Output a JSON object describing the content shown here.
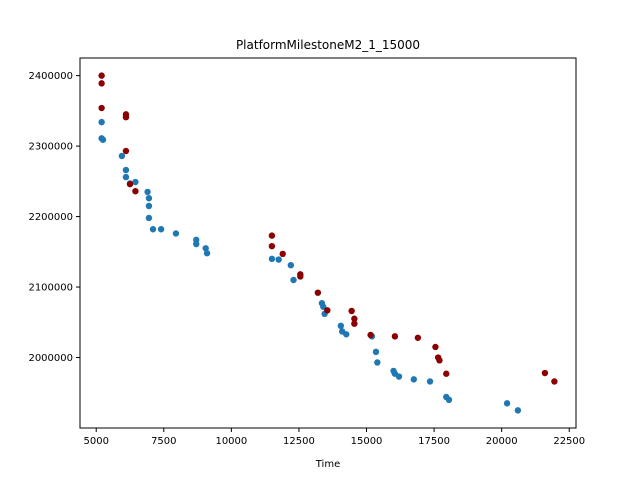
{
  "chart_data": {
    "type": "scatter",
    "title": "PlatformMilestoneM2_1_15000",
    "xlabel": "Time",
    "ylabel": "",
    "xlim": [
      4400,
      22750
    ],
    "ylim": [
      1900000,
      2425000
    ],
    "x_ticks": [
      5000,
      7500,
      10000,
      12500,
      15000,
      17500,
      20000,
      22500
    ],
    "y_ticks": [
      2000000,
      2100000,
      2200000,
      2300000,
      2400000
    ],
    "grid": false,
    "series": [
      {
        "name": "blue",
        "color": "#1f77b4",
        "points": [
          [
            5200,
            2334000
          ],
          [
            5200,
            2311000
          ],
          [
            5250,
            2309000
          ],
          [
            5950,
            2286000
          ],
          [
            6100,
            2266000
          ],
          [
            6100,
            2256000
          ],
          [
            6250,
            2247000
          ],
          [
            6450,
            2249000
          ],
          [
            6900,
            2235000
          ],
          [
            6950,
            2226000
          ],
          [
            6950,
            2215000
          ],
          [
            6950,
            2198000
          ],
          [
            7100,
            2182000
          ],
          [
            7400,
            2182000
          ],
          [
            7950,
            2176000
          ],
          [
            8700,
            2167000
          ],
          [
            8700,
            2161000
          ],
          [
            9050,
            2155000
          ],
          [
            9100,
            2148000
          ],
          [
            11500,
            2140000
          ],
          [
            11750,
            2139000
          ],
          [
            12200,
            2131000
          ],
          [
            12300,
            2110000
          ],
          [
            13350,
            2077000
          ],
          [
            13400,
            2072000
          ],
          [
            13450,
            2062000
          ],
          [
            14050,
            2045000
          ],
          [
            14100,
            2037000
          ],
          [
            14250,
            2033000
          ],
          [
            15200,
            2030000
          ],
          [
            15350,
            2008000
          ],
          [
            15400,
            1993000
          ],
          [
            16000,
            1981000
          ],
          [
            16050,
            1977000
          ],
          [
            16200,
            1973000
          ],
          [
            16750,
            1969000
          ],
          [
            17350,
            1966000
          ],
          [
            17950,
            1944000
          ],
          [
            18050,
            1940000
          ],
          [
            20200,
            1935000
          ],
          [
            20600,
            1925000
          ]
        ]
      },
      {
        "name": "red",
        "color": "#8b0000",
        "points": [
          [
            5200,
            2400000
          ],
          [
            5200,
            2389000
          ],
          [
            5200,
            2354000
          ],
          [
            6100,
            2345000
          ],
          [
            6100,
            2341000
          ],
          [
            6100,
            2293000
          ],
          [
            6250,
            2246000
          ],
          [
            6450,
            2236000
          ],
          [
            11500,
            2173000
          ],
          [
            11500,
            2158000
          ],
          [
            11900,
            2147000
          ],
          [
            12550,
            2118000
          ],
          [
            12550,
            2115000
          ],
          [
            13200,
            2092000
          ],
          [
            13550,
            2067000
          ],
          [
            14450,
            2066000
          ],
          [
            14550,
            2055000
          ],
          [
            14550,
            2048000
          ],
          [
            15150,
            2032000
          ],
          [
            16050,
            2030000
          ],
          [
            16900,
            2028000
          ],
          [
            17550,
            2015000
          ],
          [
            17650,
            2000000
          ],
          [
            17700,
            1996000
          ],
          [
            17950,
            1977000
          ],
          [
            21600,
            1978000
          ],
          [
            21950,
            1966000
          ]
        ]
      }
    ]
  }
}
